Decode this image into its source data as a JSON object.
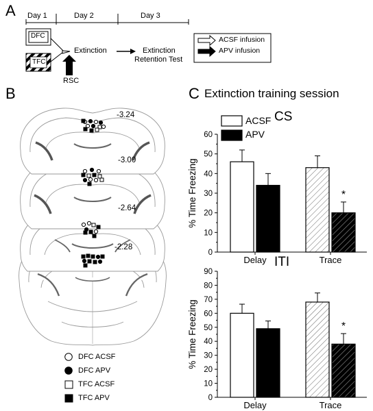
{
  "panel_a": {
    "letter": "A",
    "days": [
      "Day 1",
      "Day 2",
      "Day 3"
    ],
    "box_dfc": "DFC",
    "box_tfc": "TFC",
    "extinction": "Extinction",
    "rsc": "RSC",
    "retention_line1": "Extinction",
    "retention_line2": "Retention Test",
    "legend": [
      "ACSF infusion",
      "APV infusion"
    ]
  },
  "panel_b": {
    "letter": "B",
    "sections": [
      "-3.24",
      "-3.00",
      "-2.64",
      "-2.28"
    ],
    "legend": [
      "DFC ACSF",
      "DFC APV",
      "TFC ACSF",
      "TFC APV"
    ]
  },
  "panel_c": {
    "letter": "C",
    "title": "Extinction training session",
    "legend": [
      "ACSF",
      "APV"
    ]
  },
  "chart_data": [
    {
      "type": "bar",
      "title": "CS",
      "ylabel": "% Time Freezing",
      "categories": [
        "Delay",
        "Trace"
      ],
      "ylim": [
        0,
        60
      ],
      "yticks": [
        0,
        10,
        20,
        30,
        40,
        50,
        60
      ],
      "series": [
        {
          "name": "ACSF",
          "values": [
            46,
            43
          ],
          "errors": [
            6,
            6
          ],
          "fill": [
            "#ffffff",
            "hatch-light"
          ]
        },
        {
          "name": "APV",
          "values": [
            34,
            20
          ],
          "errors": [
            6,
            5.5
          ],
          "fill": [
            "#000000",
            "hatch-dark"
          ]
        }
      ],
      "significance": {
        "category": "Trace",
        "series": "APV",
        "symbol": "*"
      }
    },
    {
      "type": "bar",
      "title": "ITI",
      "ylabel": "% Time Freezing",
      "categories": [
        "Delay",
        "Trace"
      ],
      "ylim": [
        0,
        90
      ],
      "yticks": [
        0,
        10,
        20,
        30,
        40,
        50,
        60,
        70,
        80,
        90
      ],
      "series": [
        {
          "name": "ACSF",
          "values": [
            60,
            68
          ],
          "errors": [
            6.5,
            6.5
          ],
          "fill": [
            "#ffffff",
            "hatch-light"
          ]
        },
        {
          "name": "APV",
          "values": [
            49,
            38
          ],
          "errors": [
            5.5,
            7.5
          ],
          "fill": [
            "#000000",
            "hatch-dark"
          ]
        }
      ],
      "significance": {
        "category": "Trace",
        "series": "APV",
        "symbol": "*"
      }
    }
  ]
}
